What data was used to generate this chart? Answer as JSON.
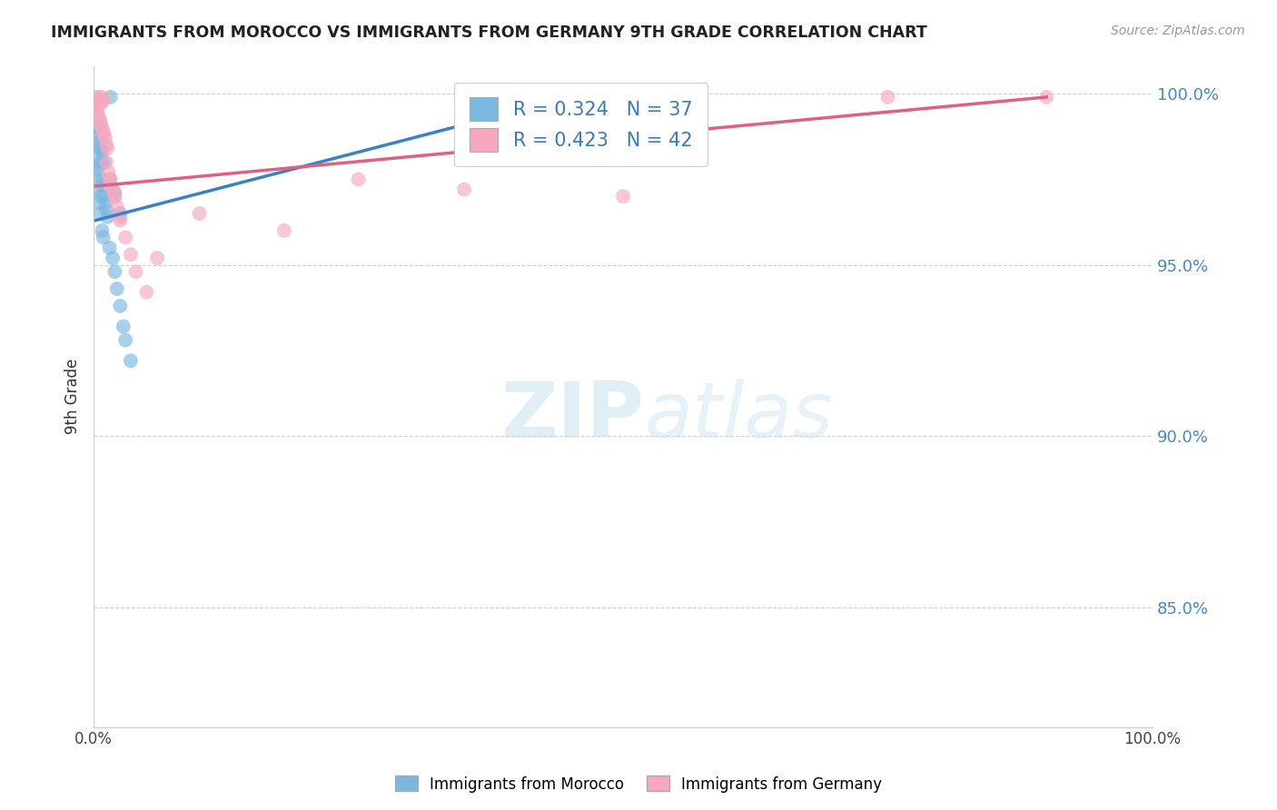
{
  "title": "IMMIGRANTS FROM MOROCCO VS IMMIGRANTS FROM GERMANY 9TH GRADE CORRELATION CHART",
  "source": "Source: ZipAtlas.com",
  "ylabel": "9th Grade",
  "x_min": 0.0,
  "x_max": 1.0,
  "y_min": 0.815,
  "y_max": 1.008,
  "R_blue": 0.324,
  "N_blue": 37,
  "R_pink": 0.423,
  "N_pink": 42,
  "color_blue": "#7ab8e0",
  "color_pink": "#f5a8be",
  "line_blue": "#3a82c4",
  "line_pink": "#e06080",
  "legend_text_color": "#3a7bbf",
  "watermark_color": "#c8e0f0",
  "blue_x": [
    0.002,
    0.003,
    0.004,
    0.005,
    0.006,
    0.007,
    0.008,
    0.009,
    0.003,
    0.004,
    0.005,
    0.006,
    0.007,
    0.008,
    0.009,
    0.01,
    0.011,
    0.012,
    0.013,
    0.015,
    0.018,
    0.02,
    0.022,
    0.025,
    0.028,
    0.03,
    0.035,
    0.004,
    0.005,
    0.006,
    0.008,
    0.01,
    0.015,
    0.02,
    0.025,
    0.016,
    0.45
  ],
  "blue_y": [
    0.975,
    0.972,
    0.978,
    0.968,
    0.965,
    0.97,
    0.96,
    0.958,
    0.985,
    0.982,
    0.979,
    0.984,
    0.98,
    0.975,
    0.973,
    0.97,
    0.968,
    0.966,
    0.964,
    0.955,
    0.952,
    0.948,
    0.943,
    0.938,
    0.932,
    0.928,
    0.922,
    0.99,
    0.988,
    0.986,
    0.983,
    0.98,
    0.975,
    0.971,
    0.965,
    0.999,
    0.999
  ],
  "pink_x": [
    0.002,
    0.003,
    0.004,
    0.005,
    0.006,
    0.007,
    0.008,
    0.009,
    0.003,
    0.004,
    0.005,
    0.006,
    0.007,
    0.008,
    0.009,
    0.01,
    0.011,
    0.012,
    0.013,
    0.015,
    0.018,
    0.02,
    0.022,
    0.025,
    0.012,
    0.014,
    0.016,
    0.018,
    0.02,
    0.025,
    0.03,
    0.035,
    0.04,
    0.05,
    0.06,
    0.1,
    0.18,
    0.25,
    0.35,
    0.5,
    0.75,
    0.9
  ],
  "pink_y": [
    0.999,
    0.998,
    0.997,
    0.999,
    0.998,
    0.997,
    0.999,
    0.998,
    0.995,
    0.994,
    0.993,
    0.992,
    0.991,
    0.99,
    0.989,
    0.988,
    0.987,
    0.985,
    0.984,
    0.975,
    0.972,
    0.97,
    0.967,
    0.963,
    0.98,
    0.977,
    0.975,
    0.972,
    0.97,
    0.964,
    0.958,
    0.953,
    0.948,
    0.942,
    0.952,
    0.965,
    0.96,
    0.975,
    0.972,
    0.97,
    0.999,
    0.999
  ],
  "blue_line_x": [
    0.002,
    0.45
  ],
  "blue_line_y": [
    0.963,
    0.999
  ],
  "pink_line_x": [
    0.002,
    0.9
  ],
  "pink_line_y": [
    0.973,
    0.999
  ]
}
